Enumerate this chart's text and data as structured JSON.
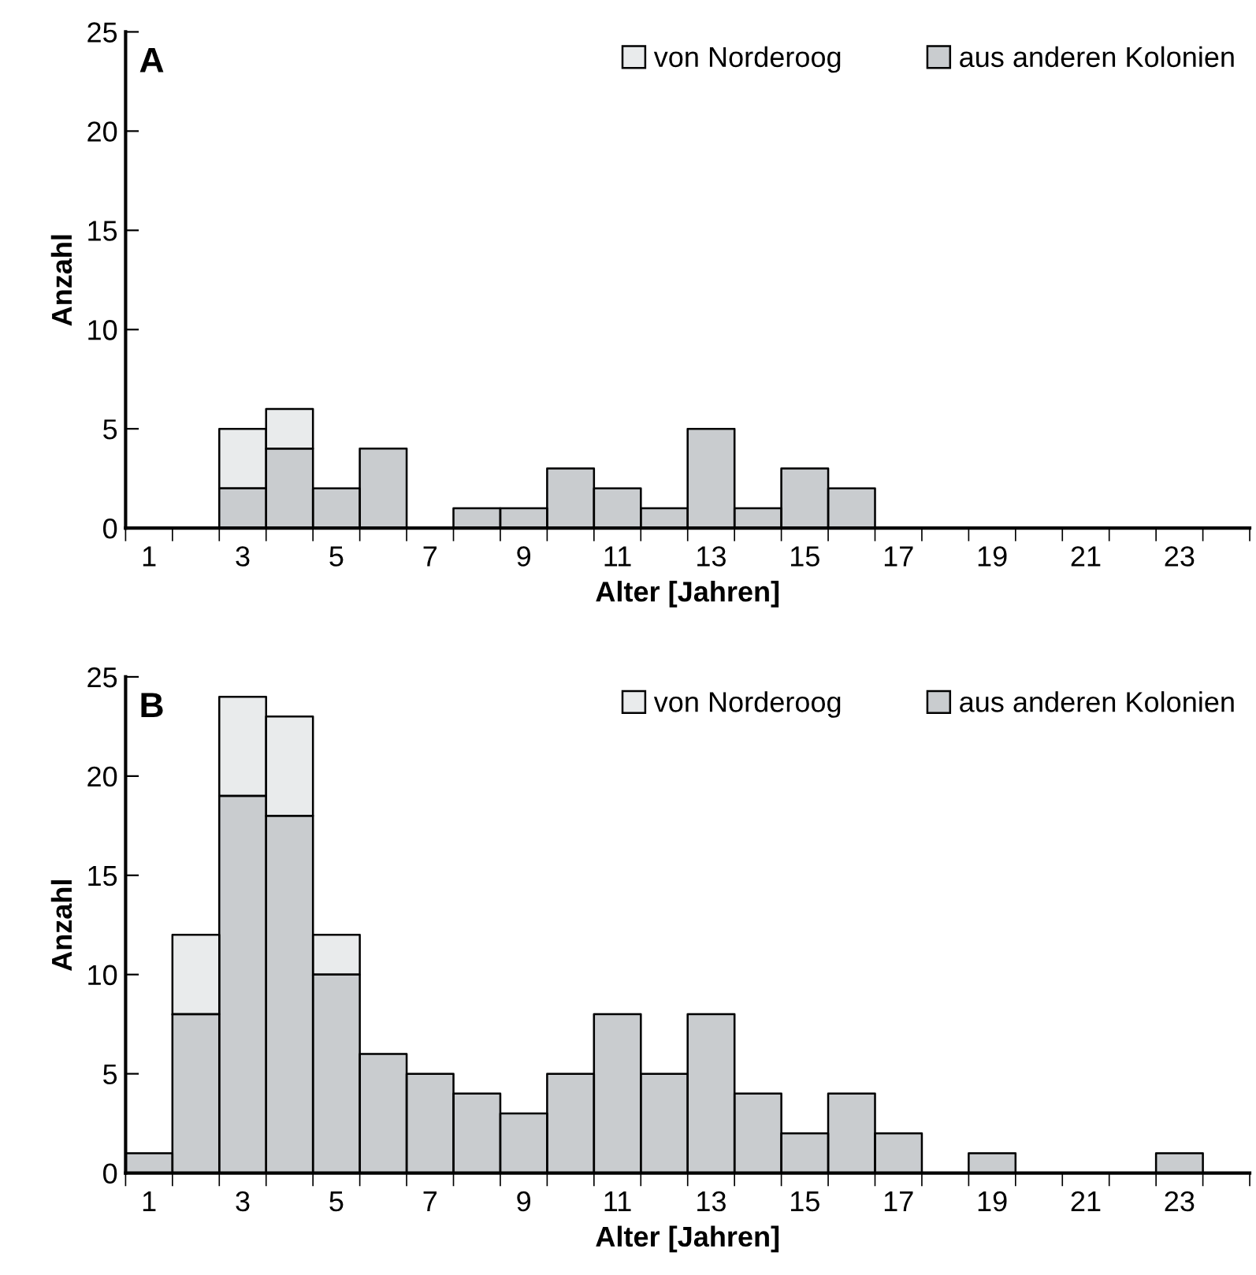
{
  "chart_data": [
    {
      "type": "bar",
      "title": "A",
      "stacked": true,
      "xlabel": "Alter [Jahren]",
      "ylabel": "Anzahl",
      "categories": [
        "1",
        null,
        "3",
        null,
        "5",
        null,
        "7",
        null,
        "9",
        null,
        "11",
        null,
        "13",
        null,
        "15",
        null,
        "17",
        null,
        "19",
        null,
        "21",
        null,
        "23",
        null
      ],
      "series": [
        {
          "name": "aus anderen Kolonien",
          "color": "#c9cccf",
          "values": [
            0,
            0,
            2,
            4,
            2,
            4,
            0,
            1,
            1,
            3,
            2,
            1,
            5,
            1,
            3,
            2,
            0,
            0,
            0,
            0,
            0,
            0,
            0,
            0
          ]
        },
        {
          "name": "von Norderoog",
          "color": "#e9ebec",
          "values": [
            0,
            0,
            3,
            2,
            0,
            0,
            0,
            0,
            0,
            0,
            0,
            0,
            0,
            0,
            0,
            0,
            0,
            0,
            0,
            0,
            0,
            0,
            0,
            0
          ]
        }
      ],
      "ylim": [
        0,
        25
      ],
      "yticks": [
        0,
        5,
        10,
        15,
        20,
        25
      ],
      "grid": false,
      "legend": "top right"
    },
    {
      "type": "bar",
      "title": "B",
      "stacked": true,
      "xlabel": "Alter [Jahren]",
      "ylabel": "Anzahl",
      "categories": [
        "1",
        null,
        "3",
        null,
        "5",
        null,
        "7",
        null,
        "9",
        null,
        "11",
        null,
        "13",
        null,
        "15",
        null,
        "17",
        null,
        "19",
        null,
        "21",
        null,
        "23",
        null
      ],
      "series": [
        {
          "name": "aus anderen Kolonien",
          "color": "#c9cccf",
          "values": [
            1,
            8,
            19,
            18,
            10,
            6,
            5,
            4,
            3,
            5,
            8,
            5,
            8,
            4,
            2,
            4,
            2,
            0,
            1,
            0,
            0,
            0,
            1,
            0
          ]
        },
        {
          "name": "von Norderoog",
          "color": "#e9ebec",
          "values": [
            0,
            4,
            5,
            5,
            2,
            0,
            0,
            0,
            0,
            0,
            0,
            0,
            0,
            0,
            0,
            0,
            0,
            0,
            0,
            0,
            0,
            0,
            0,
            0
          ]
        }
      ],
      "ylim": [
        0,
        25
      ],
      "yticks": [
        0,
        5,
        10,
        15,
        20,
        25
      ],
      "grid": false,
      "legend": "top right"
    }
  ]
}
